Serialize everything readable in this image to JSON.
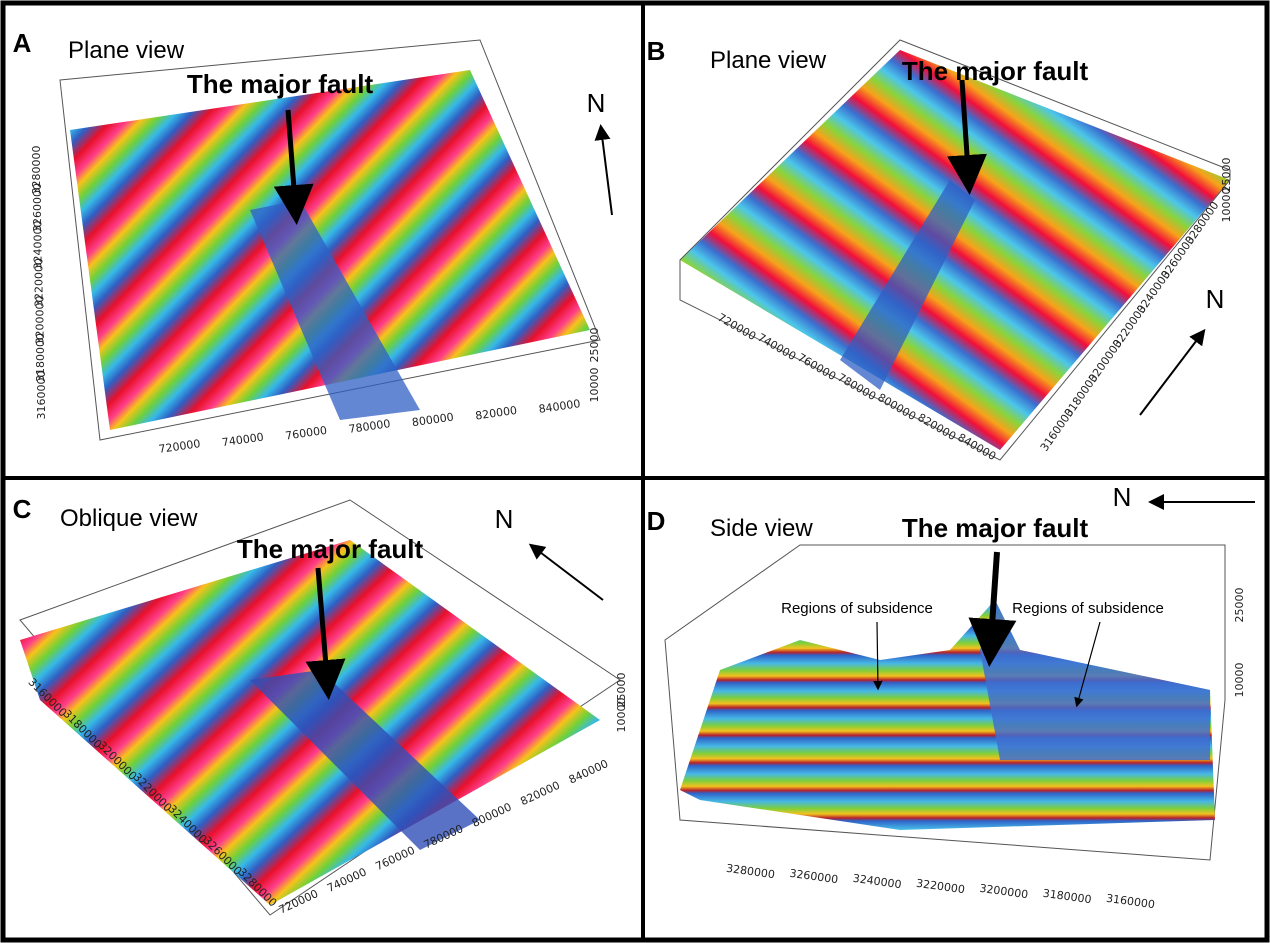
{
  "panels": [
    {
      "letter": "A",
      "view": "Plane view",
      "fault": "The major fault",
      "north": "N",
      "x_ticks": [
        "720000",
        "740000",
        "760000",
        "780000",
        "800000",
        "820000",
        "840000"
      ],
      "y_ticks": [
        "3160000",
        "3180000",
        "3200000",
        "3220000",
        "3240000",
        "3260000",
        "3280000"
      ],
      "z_ticks": [
        "10000",
        "25000"
      ]
    },
    {
      "letter": "B",
      "view": "Plane view",
      "fault": "The major fault",
      "north": "N",
      "x_ticks": [
        "720000",
        "740000",
        "760000",
        "780000",
        "800000",
        "820000",
        "840000"
      ],
      "y_ticks": [
        "3160000",
        "3180000",
        "3200000",
        "3220000",
        "3240000",
        "3260000",
        "3280000"
      ],
      "z_ticks": [
        "10000",
        "25000"
      ]
    },
    {
      "letter": "C",
      "view": "Oblique view",
      "fault": "The major fault",
      "north": "N",
      "x_ticks": [
        "720000",
        "740000",
        "760000",
        "780000",
        "800000",
        "820000",
        "840000"
      ],
      "y_ticks": [
        "3160000",
        "3180000",
        "3200000",
        "3220000",
        "3240000",
        "3260000",
        "3280000"
      ],
      "z_ticks": [
        "10000",
        "25000"
      ]
    },
    {
      "letter": "D",
      "view": "Side view",
      "fault": "The major fault",
      "north": "N",
      "x_ticks": [
        "3280000",
        "3260000",
        "3240000",
        "3220000",
        "3200000",
        "3180000",
        "3160000"
      ],
      "z_ticks": [
        "10000",
        "25000"
      ],
      "annotations": [
        "Regions of subsidence",
        "Regions of subsidence"
      ]
    }
  ]
}
